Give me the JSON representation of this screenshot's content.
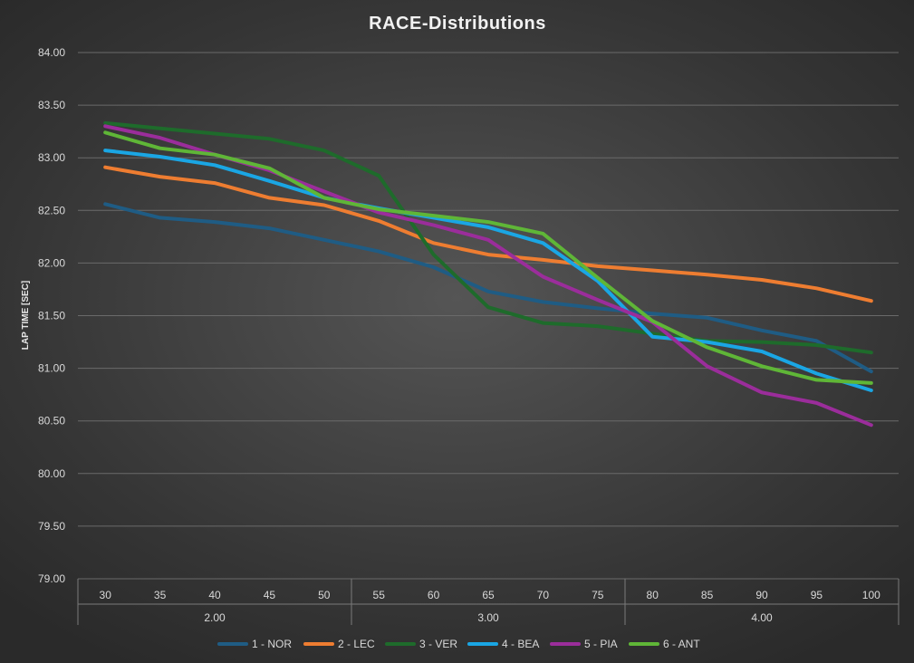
{
  "chart_data": {
    "type": "line",
    "title": "RACE-Distributions",
    "ylabel": "LAP TIME [SEC]",
    "xlabel": "",
    "ylim": [
      79.0,
      84.0
    ],
    "y_ticks": [
      "79.00",
      "79.50",
      "80.00",
      "80.50",
      "81.00",
      "81.50",
      "82.00",
      "82.50",
      "83.00",
      "83.50",
      "84.00"
    ],
    "categories": [
      "30",
      "35",
      "40",
      "45",
      "50",
      "55",
      "60",
      "65",
      "70",
      "75",
      "80",
      "85",
      "90",
      "95",
      "100"
    ],
    "groups": [
      {
        "label": "2.00",
        "span": 5
      },
      {
        "label": "3.00",
        "span": 5
      },
      {
        "label": "4.00",
        "span": 5
      }
    ],
    "grid": true,
    "legend_position": "bottom",
    "series": [
      {
        "name": "1 - NOR",
        "color": "#1f5c84",
        "values": [
          82.56,
          82.43,
          82.39,
          82.33,
          82.22,
          82.11,
          81.96,
          81.73,
          81.63,
          81.57,
          81.52,
          81.48,
          81.36,
          81.26,
          80.97
        ]
      },
      {
        "name": "2 - LEC",
        "color": "#ee7d31",
        "values": [
          82.91,
          82.82,
          82.76,
          82.62,
          82.55,
          82.4,
          82.19,
          82.08,
          82.03,
          81.97,
          81.93,
          81.89,
          81.84,
          81.76,
          81.64
        ]
      },
      {
        "name": "3 - VER",
        "color": "#1e6b2b",
        "values": [
          83.33,
          83.28,
          83.23,
          83.18,
          83.07,
          82.83,
          82.08,
          81.58,
          81.43,
          81.4,
          81.33,
          81.26,
          81.25,
          81.22,
          81.15
        ]
      },
      {
        "name": "4 - BEA",
        "color": "#1aa6e4",
        "values": [
          83.07,
          83.01,
          82.93,
          82.78,
          82.62,
          82.52,
          82.43,
          82.34,
          82.19,
          81.83,
          81.3,
          81.25,
          81.16,
          80.95,
          80.79
        ]
      },
      {
        "name": "5 - PIA",
        "color": "#9b2d9b",
        "values": [
          83.3,
          83.19,
          83.03,
          82.88,
          82.68,
          82.48,
          82.36,
          82.22,
          81.87,
          81.65,
          81.44,
          81.02,
          80.77,
          80.67,
          80.46
        ]
      },
      {
        "name": "6 - ANT",
        "color": "#5fb637",
        "values": [
          83.24,
          83.09,
          83.03,
          82.9,
          82.62,
          82.51,
          82.45,
          82.39,
          82.28,
          81.86,
          81.45,
          81.2,
          81.02,
          80.89,
          80.86
        ]
      }
    ]
  }
}
